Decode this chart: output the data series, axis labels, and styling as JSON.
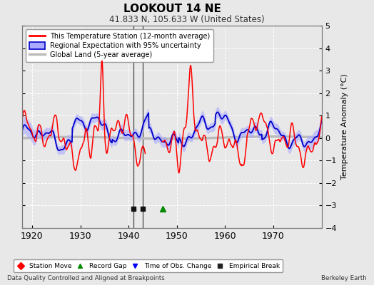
{
  "title": "LOOKOUT 14 NE",
  "subtitle": "41.833 N, 105.633 W (United States)",
  "ylabel": "Temperature Anomaly (°C)",
  "xlabel_bottom_left": "Data Quality Controlled and Aligned at Breakpoints",
  "xlabel_bottom_right": "Berkeley Earth",
  "ylim": [
    -4,
    5
  ],
  "xlim": [
    1918,
    1980
  ],
  "xticks": [
    1920,
    1930,
    1940,
    1950,
    1960,
    1970
  ],
  "yticks": [
    -4,
    -3,
    -2,
    -1,
    0,
    1,
    2,
    3,
    4,
    5
  ],
  "bg_color": "#e8e8e8",
  "plot_bg_color": "#e8e8e8",
  "grid_color": "#ffffff",
  "red_color": "#ff0000",
  "blue_color": "#0000cc",
  "blue_fill_color": "#aaaaff",
  "gray_color": "#bbbbbb",
  "empirical_break_years": [
    1941,
    1943
  ],
  "record_gap_years": [
    1947
  ],
  "legend_labels": [
    "This Temperature Station (12-month average)",
    "Regional Expectation with 95% uncertainty",
    "Global Land (5-year average)"
  ],
  "bottom_legend_labels": [
    "Station Move",
    "Record Gap",
    "Time of Obs. Change",
    "Empirical Break"
  ],
  "bottom_legend_colors": [
    "#ff0000",
    "#008800",
    "#0000ff",
    "#222222"
  ],
  "bottom_legend_markers": [
    "D",
    "^",
    "v",
    "s"
  ]
}
